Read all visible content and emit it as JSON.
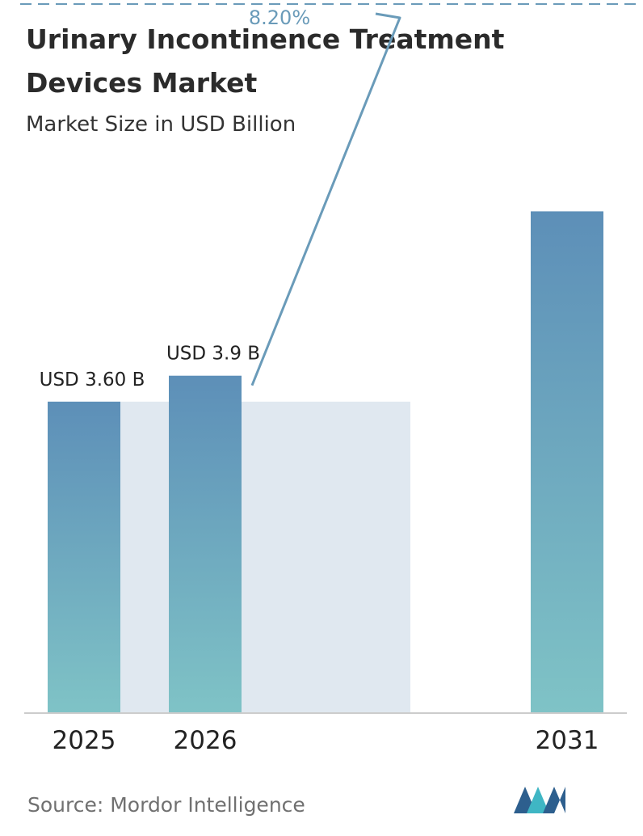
{
  "chart_data": {
    "type": "bar",
    "title_lines": [
      "Urinary Incontinence Treatment",
      "Devices Market"
    ],
    "subtitle": "Market Size in USD Billion",
    "categories": [
      "2025",
      "2026",
      "2031"
    ],
    "values": [
      3.6,
      3.9,
      5.8
    ],
    "data_labels": [
      "USD 3.60 B",
      "USD 3.9 B",
      ""
    ],
    "cagr_label": "8.20%",
    "ylim": [
      0,
      6.5
    ],
    "grid": false,
    "legend": "none"
  },
  "source": "Source:  Mordor Intelligence",
  "colors": {
    "bar_top": "#5d8fb8",
    "bar_bottom": "#7fc3c6",
    "band": "#e0e8f0",
    "axis": "#cccccc",
    "cagr": "#6a9bb9",
    "logo_dark": "#2d5f8e",
    "logo_light": "#3fb6c4"
  },
  "icons": {
    "logo": "mordor-intelligence-logo"
  }
}
